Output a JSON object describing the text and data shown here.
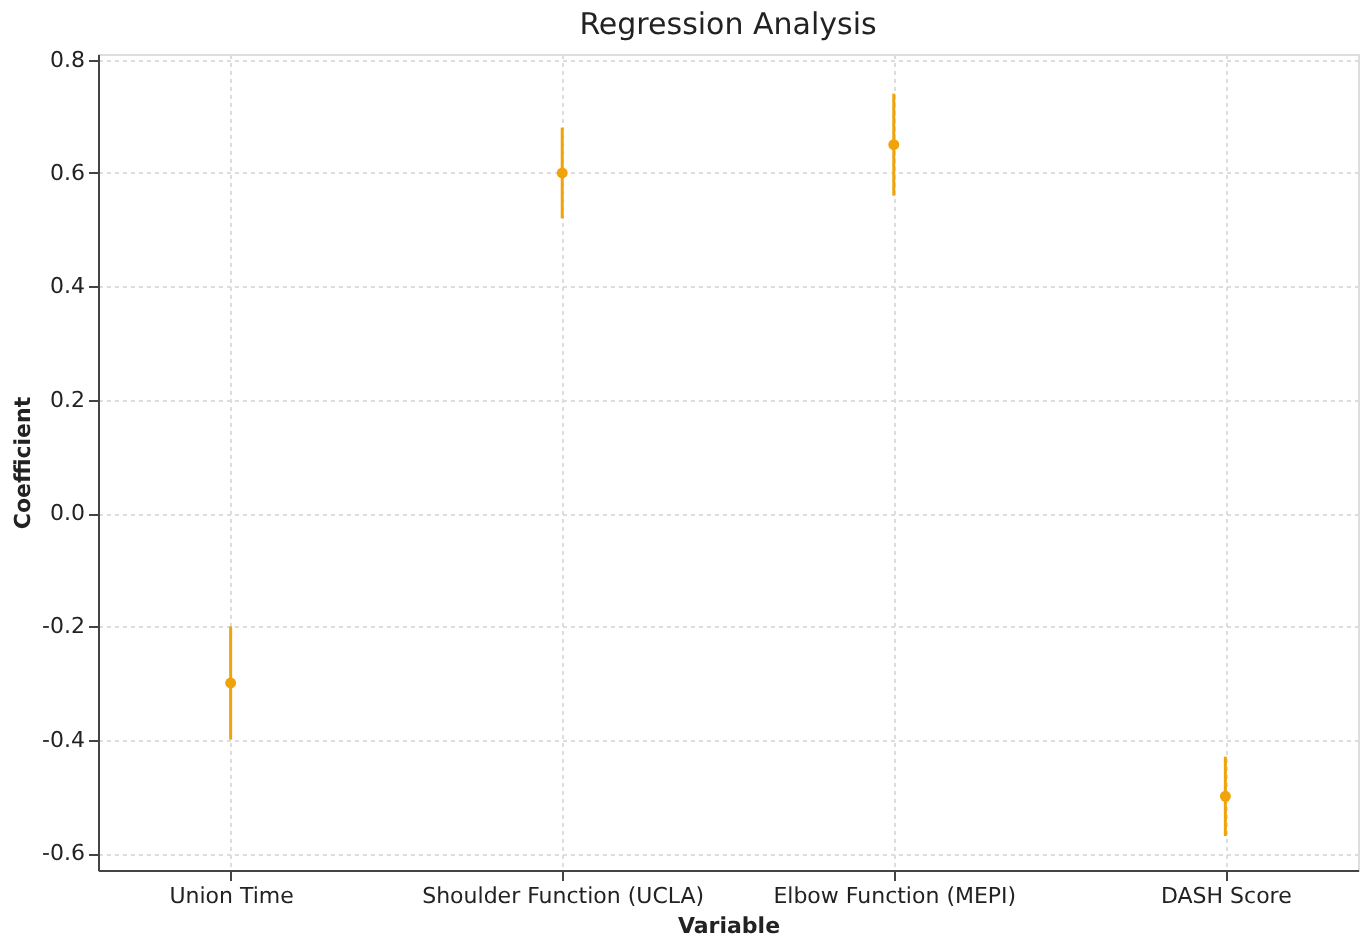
{
  "chart_data": {
    "type": "scatter",
    "title": "Regression Analysis",
    "xlabel": "Variable",
    "ylabel": "Coefficient",
    "categories": [
      "Union Time",
      "Shoulder Function (UCLA)",
      "Elbow Function (MEPI)",
      "DASH Score"
    ],
    "series": [
      {
        "color": "#f0a30a",
        "values": [
          -0.3,
          0.6,
          0.65,
          -0.5
        ],
        "errors": [
          0.1,
          0.08,
          0.09,
          0.07
        ]
      }
    ],
    "ylim": [
      -0.63,
      0.81
    ],
    "yticks": [
      {
        "value": -0.6,
        "label": "-0.6"
      },
      {
        "value": -0.4,
        "label": "-0.4"
      },
      {
        "value": -0.2,
        "label": "-0.2"
      },
      {
        "value": 0,
        "label": "0.0"
      },
      {
        "value": 0.2,
        "label": "0.2"
      },
      {
        "value": 0.4,
        "label": "0.4"
      },
      {
        "value": 0.6,
        "label": "0.6"
      },
      {
        "value": 0.8,
        "label": "0.8"
      }
    ],
    "grid": true,
    "marker": "circle"
  }
}
